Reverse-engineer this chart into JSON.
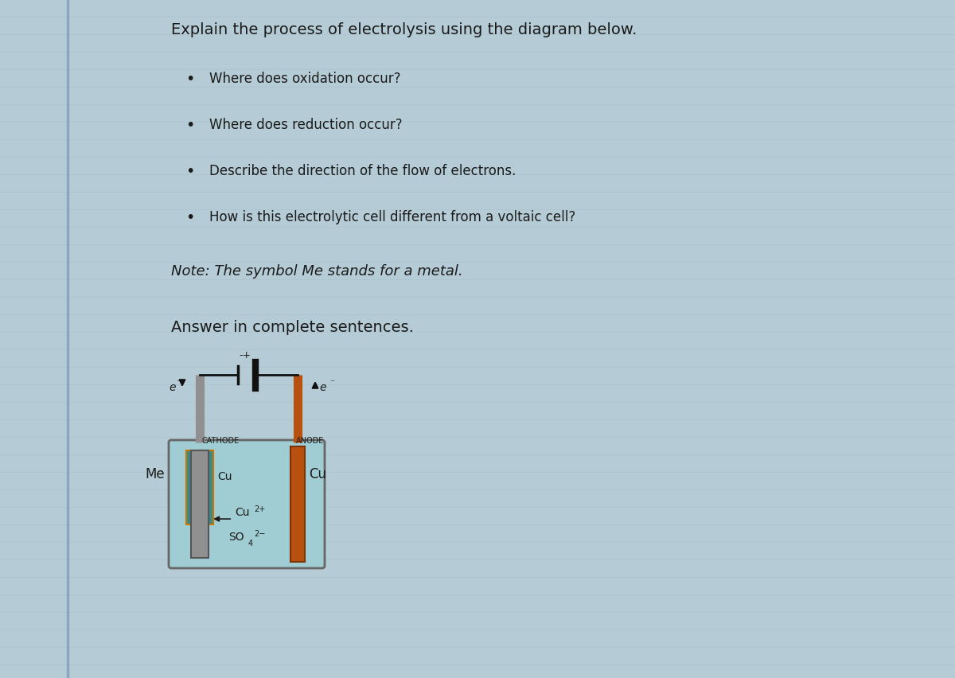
{
  "bg_color": "#b5ccd6",
  "title_line": "Explain the process of electrolysis using the diagram below.",
  "bullets": [
    "Where does oxidation occur?",
    "Where does reduction occur?",
    "Describe the direction of the flow of electrons.",
    "How is this electrolytic cell different from a voltaic cell?"
  ],
  "note_line": "Note: The symbol Me stands for a metal.",
  "answer_line": "Answer in complete sentences.",
  "title_fontsize": 14,
  "bullet_fontsize": 12,
  "note_fontsize": 13,
  "answer_fontsize": 14,
  "text_color": "#1a1a1a",
  "solution_color": "#a0cdd4",
  "cathode_color": "#909090",
  "anode_color": "#b85010",
  "cathode_deposit_color": "#3a8a8a",
  "beaker_edge_color": "#666666",
  "wire_color": "#111111",
  "label_cathode": "CATHODE",
  "label_anode": "ANODE",
  "label_me": "Me",
  "label_cu_anode": "Cu",
  "label_cu_solution": "Cu",
  "label_e_left": "e",
  "label_e_right": "e"
}
